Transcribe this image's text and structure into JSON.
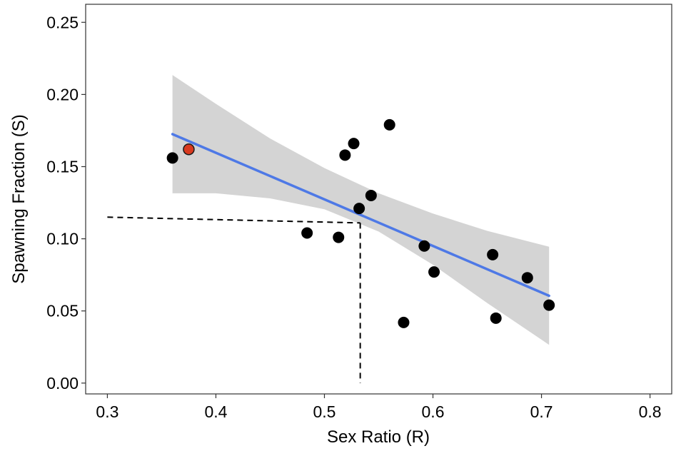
{
  "chart_data": {
    "type": "scatter",
    "xlabel": "Sex Ratio (R)",
    "ylabel": "Spawning Fraction (S)",
    "xlim": [
      0.28,
      0.82
    ],
    "ylim": [
      -0.0075,
      0.2625
    ],
    "x_ticks": [
      0.3,
      0.4,
      0.5,
      0.6,
      0.7,
      0.8
    ],
    "x_tick_labels": [
      "0.3",
      "0.4",
      "0.5",
      "0.6",
      "0.7",
      "0.8"
    ],
    "y_ticks": [
      0.0,
      0.05,
      0.1,
      0.15,
      0.2,
      0.25
    ],
    "y_tick_labels": [
      "0.00",
      "0.05",
      "0.10",
      "0.15",
      "0.20",
      "0.25"
    ],
    "grid": false,
    "series": [
      {
        "points": [
          {
            "x": 0.36,
            "y": 0.156
          },
          {
            "x": 0.484,
            "y": 0.104
          },
          {
            "x": 0.513,
            "y": 0.101
          },
          {
            "x": 0.519,
            "y": 0.158
          },
          {
            "x": 0.527,
            "y": 0.166
          },
          {
            "x": 0.532,
            "y": 0.121
          },
          {
            "x": 0.543,
            "y": 0.13
          },
          {
            "x": 0.56,
            "y": 0.179
          },
          {
            "x": 0.573,
            "y": 0.042
          },
          {
            "x": 0.592,
            "y": 0.095
          },
          {
            "x": 0.601,
            "y": 0.077
          },
          {
            "x": 0.655,
            "y": 0.089
          },
          {
            "x": 0.658,
            "y": 0.045
          },
          {
            "x": 0.687,
            "y": 0.073
          },
          {
            "x": 0.707,
            "y": 0.054
          }
        ],
        "color": "#000000"
      },
      {
        "points": [
          {
            "x": 0.375,
            "y": 0.162
          }
        ],
        "color": "#d93a1f"
      }
    ],
    "fit_line": {
      "x": [
        0.36,
        0.707
      ],
      "y": [
        0.1725,
        0.0605
      ],
      "color": "#3f6fe8"
    },
    "confidence_band": {
      "x": [
        0.36,
        0.4,
        0.45,
        0.5,
        0.55,
        0.6,
        0.65,
        0.707
      ],
      "upper": [
        0.2135,
        0.1935,
        0.1695,
        0.149,
        0.1315,
        0.1175,
        0.1055,
        0.0945
      ],
      "lower": [
        0.1315,
        0.1315,
        0.128,
        0.1205,
        0.105,
        0.082,
        0.0555,
        0.0265
      ],
      "color": "#d4d4d4"
    },
    "reference_lines": [
      {
        "x": [
          0.3,
          0.533
        ],
        "y": [
          0.115,
          0.111
        ],
        "style": "dashed"
      },
      {
        "x": [
          0.533,
          0.533
        ],
        "y": [
          0.111,
          0.0
        ],
        "style": "dashed"
      }
    ]
  }
}
